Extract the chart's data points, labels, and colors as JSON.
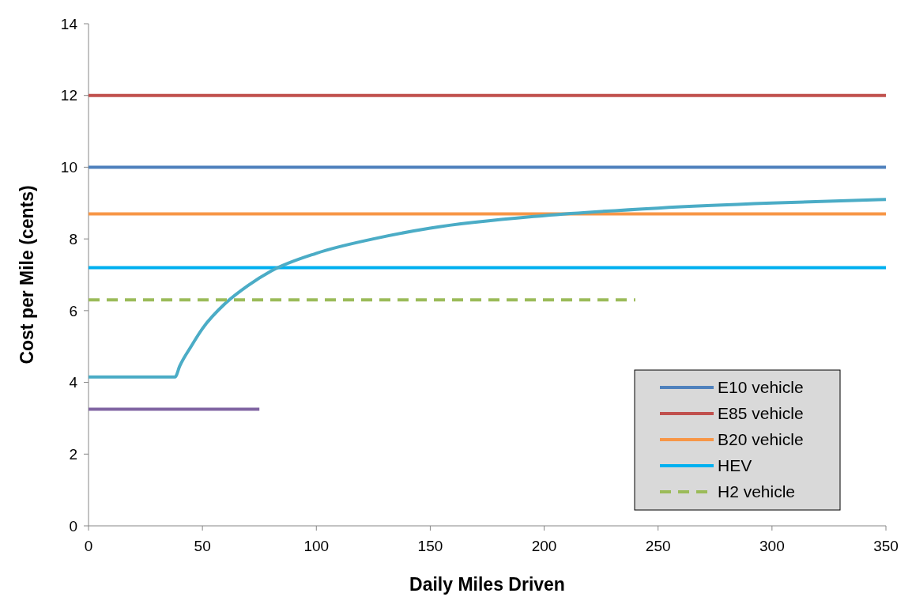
{
  "chart_data": {
    "type": "line",
    "xlabel": "Daily Miles Driven",
    "ylabel": "Cost per Mile (cents)",
    "xlim": [
      0,
      350
    ],
    "xticks": [
      0,
      50,
      100,
      150,
      200,
      250,
      300,
      350
    ],
    "ylim": [
      0,
      14
    ],
    "yticks": [
      0,
      2,
      4,
      6,
      8,
      10,
      12,
      14
    ],
    "grid": false,
    "legend": "bottom right",
    "series": [
      {
        "name": "E10 vehicle",
        "color": "#4f81bd",
        "x": [
          0,
          350
        ],
        "values": [
          10,
          10
        ]
      },
      {
        "name": "E85 vehicle",
        "color": "#c0504d",
        "x": [
          0,
          350
        ],
        "values": [
          12,
          12
        ]
      },
      {
        "name": "B20 vehicle",
        "color": "#f79646",
        "x": [
          0,
          350
        ],
        "values": [
          8.7,
          8.7
        ]
      },
      {
        "name": "HEV",
        "color": "#00b0f0",
        "x": [
          0,
          350
        ],
        "values": [
          7.2,
          7.2
        ]
      },
      {
        "color": "#4bacc6",
        "x": [
          0,
          38,
          40,
          45,
          50,
          60,
          70,
          80,
          100,
          125,
          150,
          200,
          250,
          300,
          350
        ],
        "values": [
          4.15,
          4.15,
          4.45,
          5.0,
          5.5,
          6.2,
          6.7,
          7.1,
          7.6,
          8.0,
          8.3,
          8.65,
          8.86,
          9.0,
          9.1
        ]
      },
      {
        "color": "#8064a2",
        "x": [
          0,
          75
        ],
        "values": [
          3.25,
          3.25
        ]
      },
      {
        "name": "H2 vehicle",
        "color": "#9bbb59",
        "line_style": "dashed",
        "x": [
          0,
          240
        ],
        "values": [
          6.3,
          6.3
        ]
      }
    ]
  }
}
